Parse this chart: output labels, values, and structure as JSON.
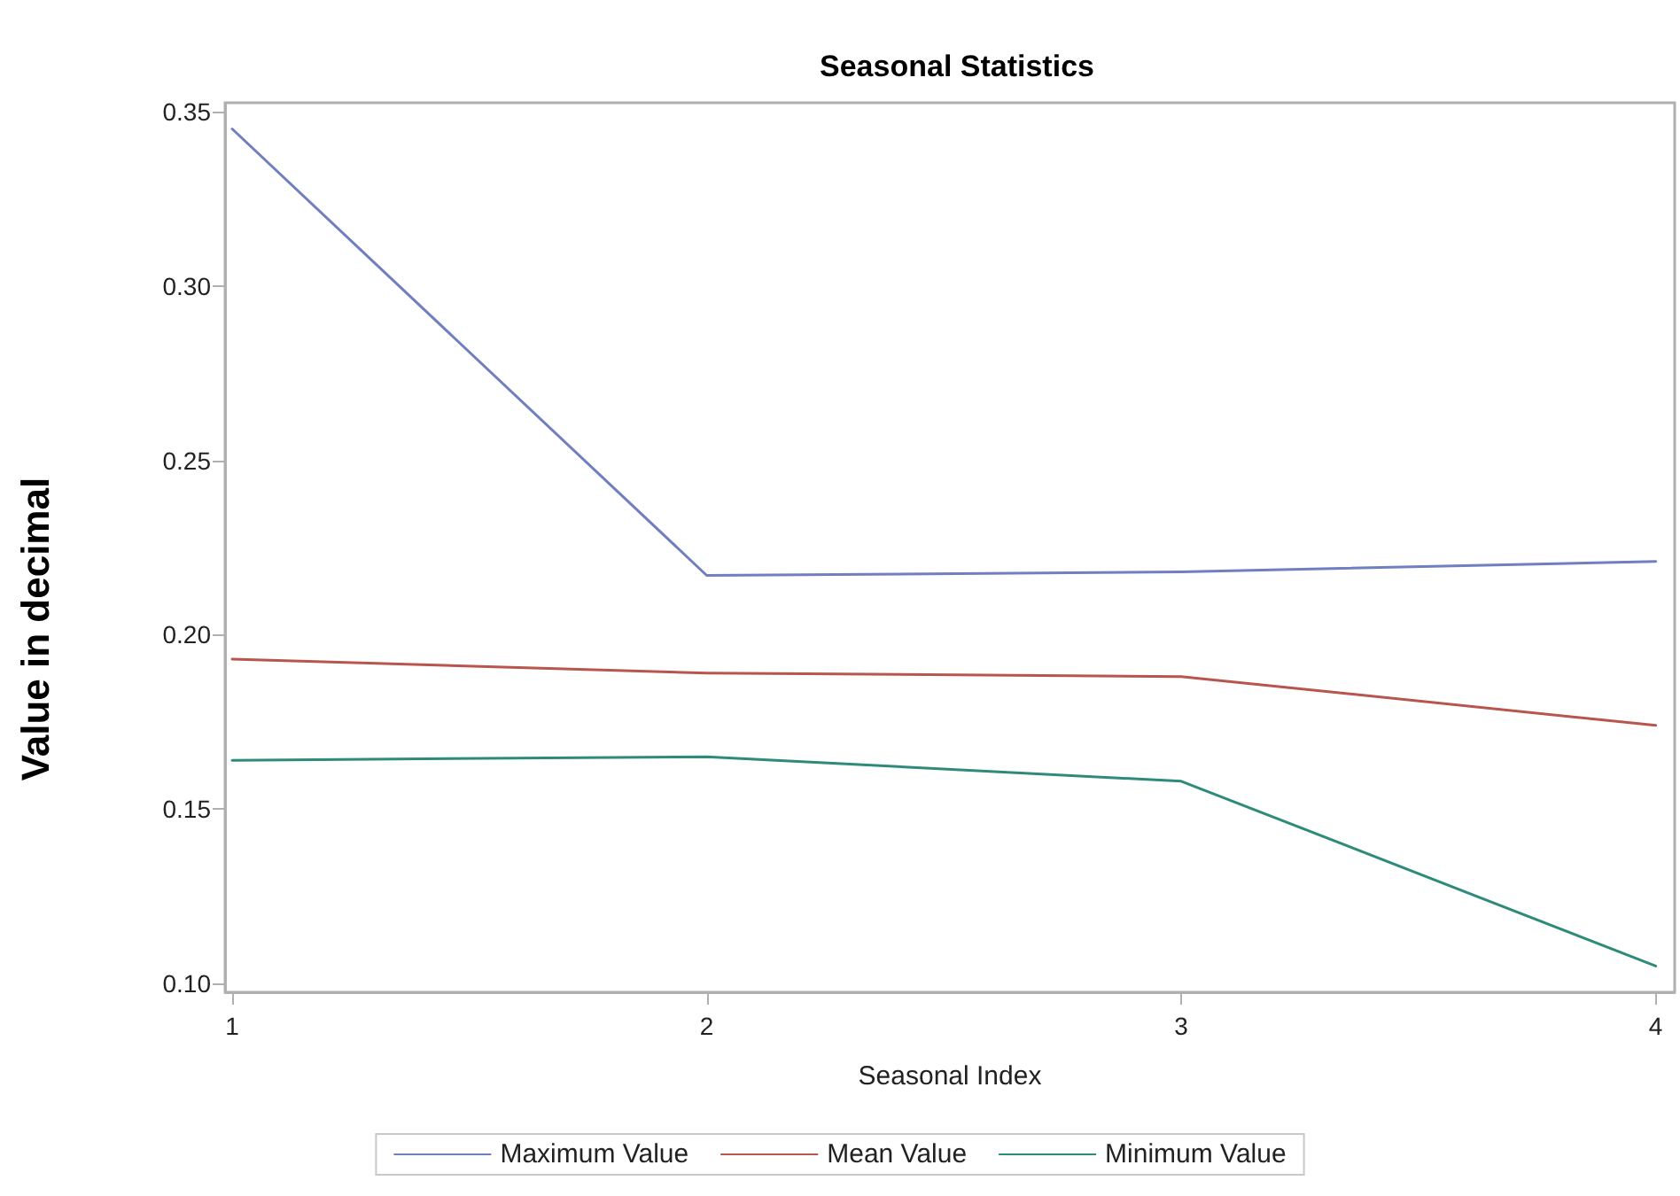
{
  "chart_data": {
    "type": "line",
    "title": "Seasonal Statistics",
    "xlabel": "Seasonal Index",
    "ylabel": "Value in decimal",
    "x": [
      1,
      2,
      3,
      4
    ],
    "series": [
      {
        "name": "Maximum Value",
        "color": "#6f7fbf",
        "values": [
          0.345,
          0.217,
          0.218,
          0.221
        ]
      },
      {
        "name": "Mean Value",
        "color": "#b8554e",
        "values": [
          0.193,
          0.189,
          0.188,
          0.174
        ]
      },
      {
        "name": "Minimum Value",
        "color": "#2e8b7a",
        "values": [
          0.164,
          0.165,
          0.158,
          0.105
        ]
      }
    ],
    "xlim": [
      0.985,
      4.04
    ],
    "xticks": [
      1,
      2,
      3,
      4
    ],
    "ylim": [
      0.0975,
      0.3525
    ],
    "yticks": [
      {
        "value": 0.1,
        "label": "0.10"
      },
      {
        "value": 0.15,
        "label": "0.15"
      },
      {
        "value": 0.2,
        "label": "0.20"
      },
      {
        "value": 0.25,
        "label": "0.25"
      },
      {
        "value": 0.3,
        "label": "0.30"
      },
      {
        "value": 0.35,
        "label": "0.35"
      }
    ],
    "grid": false,
    "legend": "bottom",
    "marker": "none",
    "line_style": "solid"
  }
}
